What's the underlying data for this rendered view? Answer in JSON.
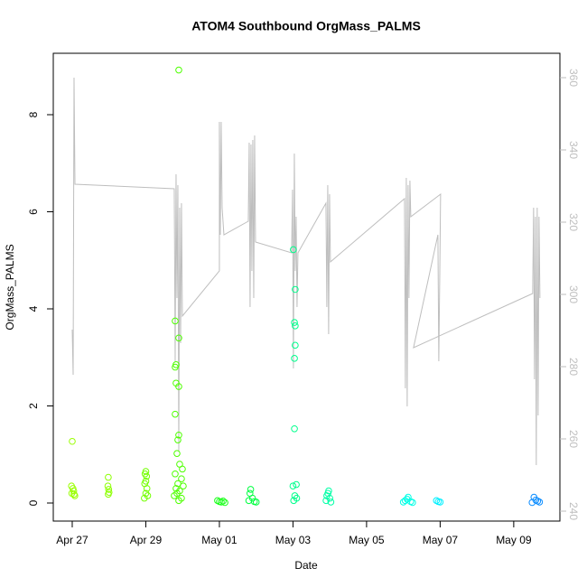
{
  "chart_data": {
    "type": "scatter",
    "title": "ATOM4 Southbound OrgMass_PALMS",
    "x_label": "Date",
    "y_label": "OrgMass_PALMS",
    "xlim": [
      -0.515,
      13.255
    ],
    "ylim": [
      -0.372,
      9.265
    ],
    "y2lim": [
      237.25,
      366.75
    ],
    "xticks": [
      {
        "value": 0,
        "label": "Apr 27"
      },
      {
        "value": 2,
        "label": "Apr 29"
      },
      {
        "value": 4,
        "label": "May 01"
      },
      {
        "value": 6,
        "label": "May 03"
      },
      {
        "value": 8,
        "label": "May 05"
      },
      {
        "value": 10,
        "label": "May 07"
      },
      {
        "value": 12,
        "label": "May 09"
      }
    ],
    "yticks": [
      0,
      2,
      4,
      6,
      8
    ],
    "y2ticks": [
      240,
      260,
      280,
      300,
      320,
      340,
      360
    ],
    "series": [
      {
        "color": "#99ff00",
        "x": [
          0,
          -0.02,
          0.02,
          0.04,
          -0.01,
          0.05,
          0.07
        ],
        "values": [
          1.27,
          0.35,
          0.3,
          0.25,
          0.2,
          0.18,
          0.15
        ]
      },
      {
        "color": "#8cff00",
        "x": [
          0.98,
          0.97,
          0.99,
          1.0,
          0.98
        ],
        "values": [
          0.53,
          0.35,
          0.28,
          0.22,
          0.18
        ]
      },
      {
        "color": "#73ff00",
        "x": [
          2.0,
          1.98,
          2.02,
          2.0,
          1.97,
          2.03,
          2.0,
          2.05,
          1.96
        ],
        "values": [
          0.65,
          0.6,
          0.55,
          0.45,
          0.4,
          0.3,
          0.2,
          0.15,
          0.1
        ]
      },
      {
        "color": "#4dff00",
        "x": [
          2.896,
          2.798,
          2.896,
          2.822,
          2.798,
          2.822,
          2.896,
          2.798,
          2.896,
          2.871,
          2.847,
          2.92,
          2.994,
          2.798,
          2.969,
          2.871,
          3.018,
          2.822,
          2.92,
          2.847,
          2.773,
          2.969,
          2.896
        ],
        "values": [
          8.92,
          3.75,
          3.4,
          2.85,
          2.8,
          2.47,
          2.4,
          1.83,
          1.4,
          1.3,
          1.02,
          0.8,
          0.7,
          0.6,
          0.5,
          0.4,
          0.35,
          0.3,
          0.25,
          0.2,
          0.15,
          0.1,
          0.05
        ]
      },
      {
        "color": "#1aff1a",
        "x": [
          3.95,
          4.0,
          4.05,
          4.1,
          4.15
        ],
        "values": [
          0.05,
          0.03,
          0.02,
          0.04,
          0.01
        ]
      },
      {
        "color": "#00ff40",
        "x": [
          4.85,
          4.83,
          4.9,
          4.8,
          4.95,
          5.0
        ],
        "values": [
          0.28,
          0.2,
          0.1,
          0.05,
          0.03,
          0.02
        ]
      },
      {
        "color": "#00ff8c",
        "x": [
          6.01,
          6.06,
          6.04,
          6.06,
          6.06,
          6.04,
          6.04,
          6.09,
          6.0,
          6.05,
          6.1,
          6.02
        ],
        "values": [
          5.22,
          4.4,
          3.72,
          3.65,
          3.25,
          2.98,
          1.53,
          0.38,
          0.35,
          0.15,
          0.1,
          0.05
        ]
      },
      {
        "color": "#00ffa6",
        "x": [
          6.97,
          6.95,
          6.92,
          7.0,
          6.9,
          7.03
        ],
        "values": [
          0.25,
          0.2,
          0.15,
          0.1,
          0.05,
          0.02
        ]
      },
      {
        "color": "#00ffe6",
        "x": [
          9.13,
          9.1,
          9.05,
          9.2,
          9.0,
          9.25
        ],
        "values": [
          0.12,
          0.08,
          0.05,
          0.03,
          0.02,
          0.01
        ]
      },
      {
        "color": "#00f0ff",
        "x": [
          9.9,
          9.95,
          10.0
        ],
        "values": [
          0.05,
          0.03,
          0.02
        ]
      },
      {
        "color": "#0a8cff",
        "x": [
          12.55,
          12.6,
          12.65,
          12.7,
          12.5
        ],
        "values": [
          0.12,
          0.06,
          0.04,
          0.02,
          0.01
        ]
      },
      {
        "type": "line",
        "axis": "y2",
        "color": "#bebebe",
        "x": [
          0,
          0.025,
          0.049,
          0.074,
          2.773,
          2.798,
          2.822,
          2.847,
          2.871,
          2.896,
          2.92,
          2.945,
          2.969,
          2.994,
          4.0,
          4.0,
          4.025,
          4.049,
          4.074,
          4.123,
          4.785,
          4.81,
          4.834,
          4.859,
          4.883,
          4.908,
          4.933,
          4.957,
          4.982,
          5.963,
          5.988,
          6.012,
          6.037,
          6.061,
          6.086,
          6.11,
          6.135,
          6.896,
          6.92,
          6.945,
          6.969,
          6.994,
          7.018,
          9.031,
          9.055,
          9.08,
          9.104,
          9.129,
          9.153,
          9.178,
          9.202,
          10.012,
          9.988,
          9.963,
          9.939,
          9.276,
          12.515,
          12.54,
          12.564,
          12.589,
          12.613,
          12.638,
          12.663,
          12.687,
          12.712
        ],
        "values": [
          290.25,
          277.75,
          360,
          330.5,
          329.25,
          281.5,
          333.25,
          299,
          330.25,
          256.5,
          324,
          286.5,
          325.25,
          294,
          306.5,
          347.75,
          316.5,
          347.75,
          324,
          316.5,
          320.25,
          342,
          296.5,
          341.5,
          306.5,
          342.75,
          299,
          344,
          314.5,
          311.5,
          329,
          279.5,
          339,
          306.5,
          321.5,
          296.5,
          311.5,
          325.25,
          296.5,
          330.25,
          289,
          327.75,
          309,
          326.5,
          274,
          332.25,
          269,
          330.25,
          299,
          331.5,
          321.5,
          327.75,
          304,
          281.5,
          316.5,
          285.25,
          300.25,
          324,
          276.5,
          321.5,
          252.75,
          324,
          266.5,
          321.5,
          299
        ]
      }
    ]
  }
}
